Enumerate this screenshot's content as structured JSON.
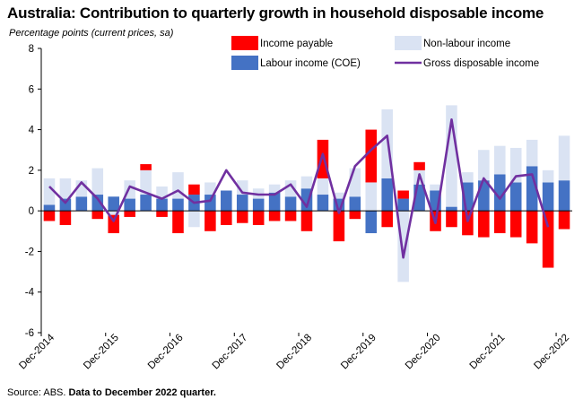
{
  "title": "Australia: Contribution to quarterly growth in household disposable income",
  "subtitle": "Percentage points (current prices, sa)",
  "source_prefix": "Source: ABS. ",
  "source_note": "Data to December 2022 quarter.",
  "colors": {
    "income_payable": "#ff0000",
    "non_labour_income": "#dae3f3",
    "labour_income": "#4472c4",
    "gross_disposable_income": "#7030a0"
  },
  "chart_data": {
    "type": "bar",
    "stacked": true,
    "title": "Australia: Contribution to quarterly growth in household disposable income",
    "ylabel": "Percentage points (current prices, sa)",
    "ylim": [
      -6,
      8
    ],
    "yticks": [
      -6,
      -4,
      -2,
      0,
      2,
      4,
      6,
      8
    ],
    "yticks_labels": [
      "-6",
      "-4",
      "-2",
      "0",
      "2",
      "4",
      "6",
      "8"
    ],
    "grid": false,
    "legend_position": "top-right",
    "categories": [
      "Dec-2014",
      "Mar-2015",
      "Jun-2015",
      "Sep-2015",
      "Dec-2015",
      "Mar-2016",
      "Jun-2016",
      "Sep-2016",
      "Dec-2016",
      "Mar-2017",
      "Jun-2017",
      "Sep-2017",
      "Dec-2017",
      "Mar-2018",
      "Jun-2018",
      "Sep-2018",
      "Dec-2018",
      "Mar-2019",
      "Jun-2019",
      "Sep-2019",
      "Dec-2019",
      "Mar-2020",
      "Jun-2020",
      "Sep-2020",
      "Dec-2020",
      "Mar-2021",
      "Jun-2021",
      "Sep-2021",
      "Dec-2021",
      "Mar-2022",
      "Jun-2022",
      "Sep-2022",
      "Dec-2022"
    ],
    "x_tick_labels": [
      "Dec-2014",
      "Dec-2015",
      "Dec-2016",
      "Dec-2017",
      "Dec-2018",
      "Dec-2019",
      "Dec-2020",
      "Dec-2021",
      "Dec-2022"
    ],
    "x_tick_every": 4,
    "series": [
      {
        "name": "Income payable",
        "kind": "bar",
        "values": [
          -0.5,
          -0.7,
          0.0,
          -0.4,
          -0.9,
          -0.3,
          0.3,
          -0.3,
          -1.1,
          0.5,
          -1.0,
          -0.7,
          -0.6,
          -0.7,
          -0.5,
          -0.5,
          -1.0,
          1.9,
          -1.5,
          -0.4,
          2.6,
          -0.8,
          0.4,
          0.4,
          -1.0,
          -0.8,
          -1.2,
          -1.3,
          -1.1,
          -1.3,
          -1.6,
          -2.8,
          -0.9
        ]
      },
      {
        "name": "Non-labour income",
        "kind": "bar",
        "values": [
          1.3,
          1.0,
          0.8,
          1.3,
          -0.2,
          0.9,
          1.2,
          0.6,
          1.3,
          -0.8,
          0.6,
          0.0,
          0.7,
          0.5,
          0.4,
          0.8,
          0.6,
          0.8,
          0.3,
          1.4,
          1.4,
          3.4,
          -3.5,
          0.7,
          0.3,
          5.0,
          0.5,
          1.5,
          1.4,
          1.7,
          1.3,
          0.6,
          2.2
        ]
      },
      {
        "name": "Labour income (COE)",
        "kind": "bar",
        "values": [
          0.3,
          0.6,
          0.7,
          0.8,
          0.7,
          0.6,
          0.8,
          0.6,
          0.6,
          0.8,
          0.8,
          1.0,
          0.8,
          0.6,
          0.9,
          0.7,
          1.1,
          0.8,
          0.6,
          0.7,
          -1.1,
          1.6,
          0.6,
          1.3,
          1.0,
          0.2,
          1.4,
          1.5,
          1.8,
          1.4,
          2.2,
          1.4,
          1.5
        ]
      },
      {
        "name": "Gross disposable income",
        "kind": "line",
        "values": [
          1.2,
          0.4,
          1.4,
          0.6,
          -0.5,
          1.2,
          0.9,
          0.6,
          1.0,
          0.4,
          0.5,
          2.0,
          0.9,
          0.8,
          0.8,
          1.3,
          0.2,
          2.8,
          -0.1,
          2.2,
          3.0,
          3.7,
          -2.3,
          1.8,
          -0.6,
          4.5,
          -0.5,
          1.6,
          0.6,
          1.7,
          1.8,
          -0.8,
          null
        ]
      }
    ]
  },
  "legend": [
    {
      "label": "Income payable",
      "swatch": "income_payable",
      "kind": "box"
    },
    {
      "label": "Non-labour income",
      "swatch": "non_labour_income",
      "kind": "box"
    },
    {
      "label": "Labour income (COE)",
      "swatch": "labour_income",
      "kind": "box"
    },
    {
      "label": "Gross disposable income",
      "swatch": "gross_disposable_income",
      "kind": "line"
    }
  ]
}
